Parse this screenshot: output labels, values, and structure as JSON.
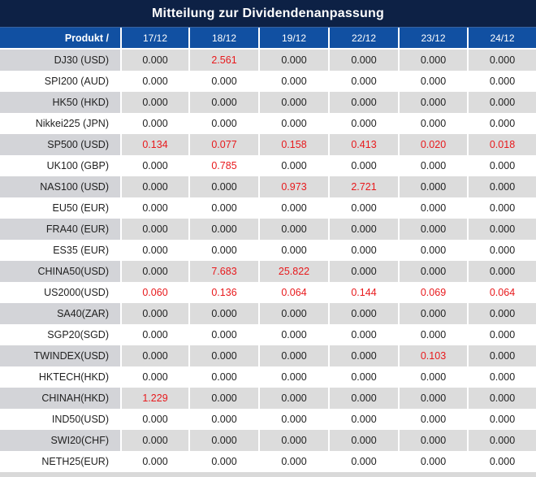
{
  "title": "Mitteilung zur Dividendenanpassung",
  "colors": {
    "title_bg": "#0d2145",
    "header_bg": "#1150a2",
    "row_alt_bg": "#dcdcdc",
    "value_red": "#e8191c",
    "value_black": "#1f1f1f"
  },
  "table": {
    "product_header": "Produkt /",
    "date_columns": [
      "17/12",
      "18/12",
      "19/12",
      "22/12",
      "23/12",
      "24/12"
    ],
    "zero_value": "0.000",
    "rows": [
      {
        "product": "DJ30 (USD)",
        "values": [
          "0.000",
          "2.561",
          "0.000",
          "0.000",
          "0.000",
          "0.000"
        ]
      },
      {
        "product": "SPI200 (AUD)",
        "values": [
          "0.000",
          "0.000",
          "0.000",
          "0.000",
          "0.000",
          "0.000"
        ]
      },
      {
        "product": "HK50 (HKD)",
        "values": [
          "0.000",
          "0.000",
          "0.000",
          "0.000",
          "0.000",
          "0.000"
        ]
      },
      {
        "product": "Nikkei225 (JPN)",
        "values": [
          "0.000",
          "0.000",
          "0.000",
          "0.000",
          "0.000",
          "0.000"
        ]
      },
      {
        "product": "SP500 (USD)",
        "values": [
          "0.134",
          "0.077",
          "0.158",
          "0.413",
          "0.020",
          "0.018"
        ]
      },
      {
        "product": "UK100 (GBP)",
        "values": [
          "0.000",
          "0.785",
          "0.000",
          "0.000",
          "0.000",
          "0.000"
        ]
      },
      {
        "product": "NAS100 (USD)",
        "values": [
          "0.000",
          "0.000",
          "0.973",
          "2.721",
          "0.000",
          "0.000"
        ]
      },
      {
        "product": "EU50 (EUR)",
        "values": [
          "0.000",
          "0.000",
          "0.000",
          "0.000",
          "0.000",
          "0.000"
        ]
      },
      {
        "product": "FRA40 (EUR)",
        "values": [
          "0.000",
          "0.000",
          "0.000",
          "0.000",
          "0.000",
          "0.000"
        ]
      },
      {
        "product": "ES35 (EUR)",
        "values": [
          "0.000",
          "0.000",
          "0.000",
          "0.000",
          "0.000",
          "0.000"
        ]
      },
      {
        "product": "CHINA50(USD)",
        "values": [
          "0.000",
          "7.683",
          "25.822",
          "0.000",
          "0.000",
          "0.000"
        ]
      },
      {
        "product": "US2000(USD)",
        "values": [
          "0.060",
          "0.136",
          "0.064",
          "0.144",
          "0.069",
          "0.064"
        ]
      },
      {
        "product": "SA40(ZAR)",
        "values": [
          "0.000",
          "0.000",
          "0.000",
          "0.000",
          "0.000",
          "0.000"
        ]
      },
      {
        "product": "SGP20(SGD)",
        "values": [
          "0.000",
          "0.000",
          "0.000",
          "0.000",
          "0.000",
          "0.000"
        ]
      },
      {
        "product": "TWINDEX(USD)",
        "values": [
          "0.000",
          "0.000",
          "0.000",
          "0.000",
          "0.103",
          "0.000"
        ]
      },
      {
        "product": "HKTECH(HKD)",
        "values": [
          "0.000",
          "0.000",
          "0.000",
          "0.000",
          "0.000",
          "0.000"
        ]
      },
      {
        "product": "CHINAH(HKD)",
        "values": [
          "1.229",
          "0.000",
          "0.000",
          "0.000",
          "0.000",
          "0.000"
        ]
      },
      {
        "product": "IND50(USD)",
        "values": [
          "0.000",
          "0.000",
          "0.000",
          "0.000",
          "0.000",
          "0.000"
        ]
      },
      {
        "product": "SWI20(CHF)",
        "values": [
          "0.000",
          "0.000",
          "0.000",
          "0.000",
          "0.000",
          "0.000"
        ]
      },
      {
        "product": "NETH25(EUR)",
        "values": [
          "0.000",
          "0.000",
          "0.000",
          "0.000",
          "0.000",
          "0.000"
        ]
      }
    ]
  }
}
